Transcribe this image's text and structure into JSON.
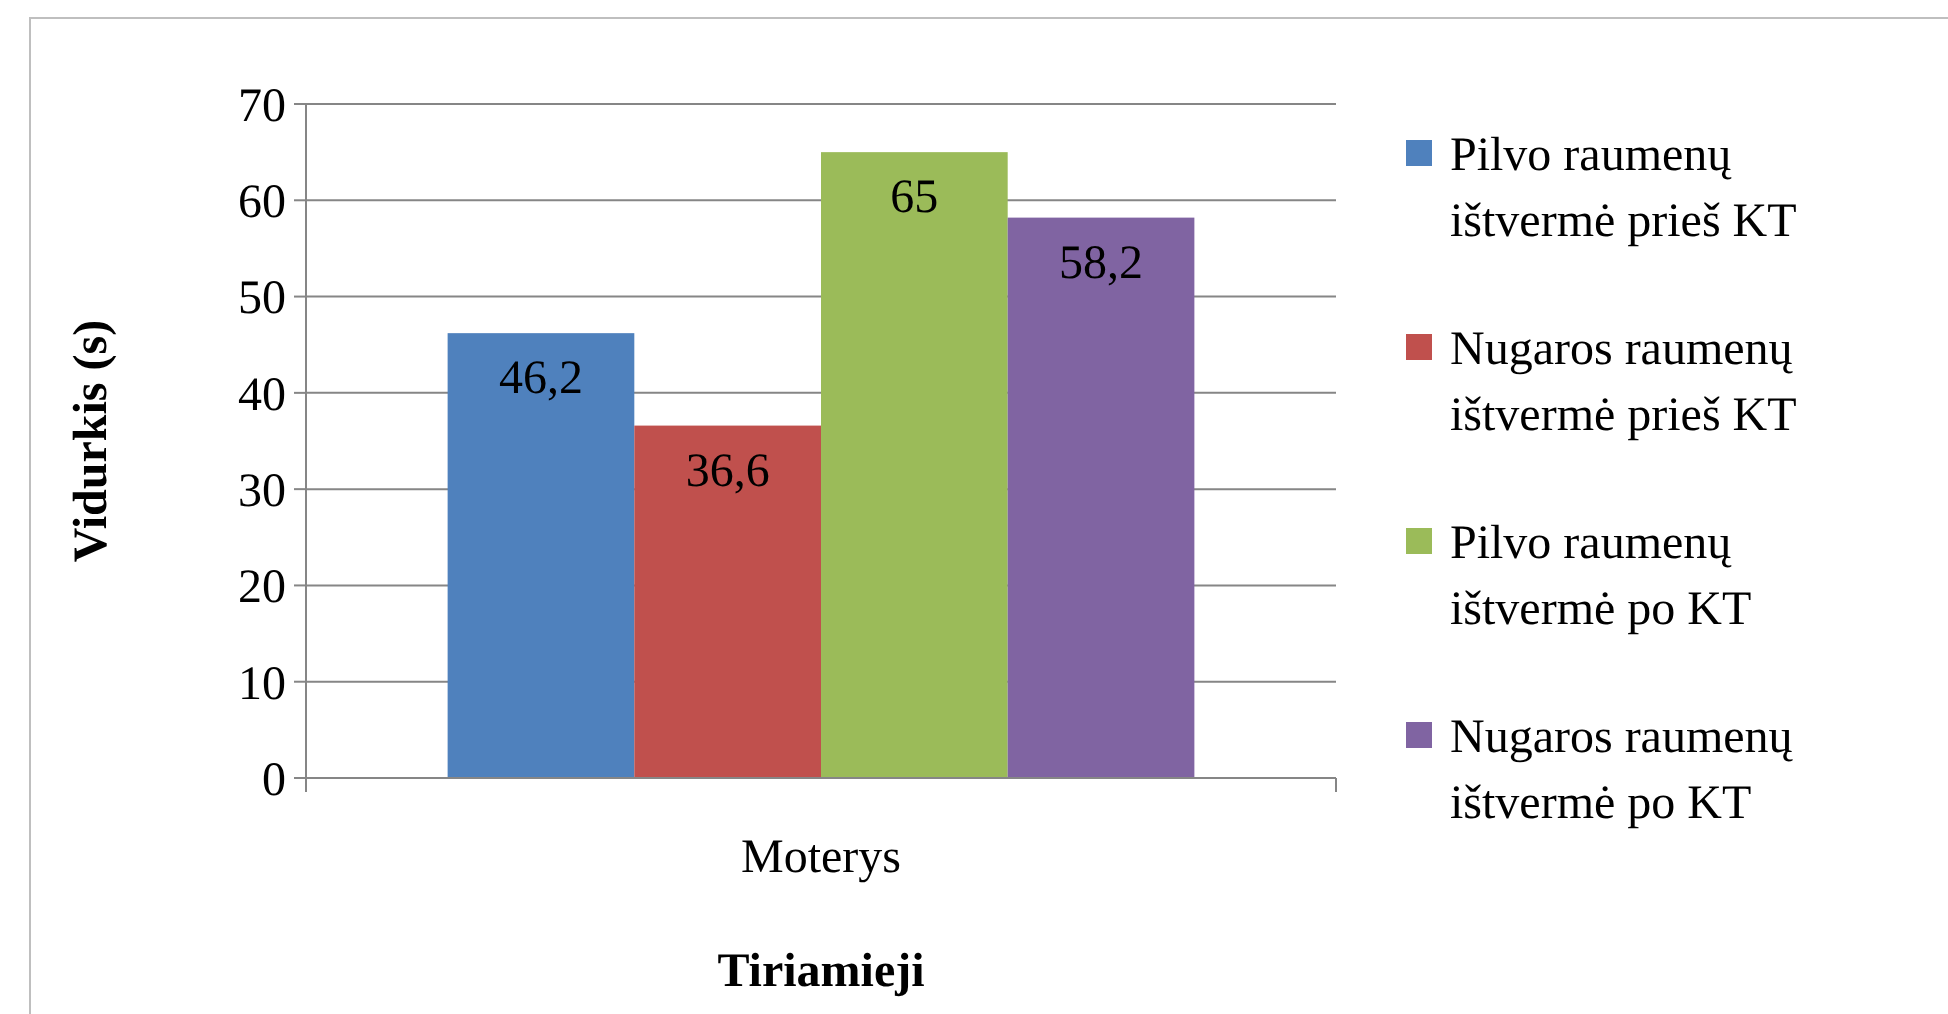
{
  "chart_data": {
    "type": "bar",
    "xlabel": "Tiriamieji",
    "ylabel": "Vidurkis (s)",
    "categories": [
      "Moterys"
    ],
    "series": [
      {
        "name": "Pilvo raumenų ištvermė prieš KT",
        "color": "#4f81bd",
        "values": [
          46.2
        ],
        "value_labels": [
          "46,2"
        ]
      },
      {
        "name": "Nugaros raumenų ištvermė prieš KT",
        "color": "#c0504d",
        "values": [
          36.6
        ],
        "value_labels": [
          "36,6"
        ]
      },
      {
        "name": "Pilvo raumenų ištvermė po KT",
        "color": "#9bbb59",
        "values": [
          65
        ],
        "value_labels": [
          "65"
        ]
      },
      {
        "name": "Nugaros raumenų ištvermė po KT",
        "color": "#8064a2",
        "values": [
          58.2
        ],
        "value_labels": [
          "58,2"
        ]
      }
    ],
    "ylim": [
      0,
      70
    ],
    "yticks": [
      0,
      10,
      20,
      30,
      40,
      50,
      60,
      70
    ],
    "grid": "y",
    "legend": "right"
  }
}
